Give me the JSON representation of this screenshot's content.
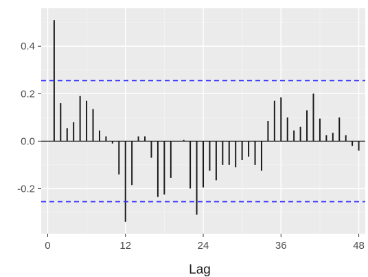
{
  "chart_data": {
    "type": "bar",
    "title": "",
    "xlabel": "Lag",
    "ylabel": "",
    "x_ticks": [
      0,
      12,
      24,
      36,
      48
    ],
    "y_ticks": [
      -0.2,
      0.0,
      0.2,
      0.4
    ],
    "y_tick_labels": [
      "-0.2",
      "0.0",
      "0.2",
      "0.4"
    ],
    "xlim": [
      -1,
      49
    ],
    "ylim": [
      -0.39,
      0.56
    ],
    "confidence_band": [
      0.255,
      -0.255
    ],
    "grid": true,
    "series": [
      {
        "x": [
          1,
          2,
          3,
          4,
          5,
          6,
          7,
          8,
          9,
          10,
          11,
          12,
          13,
          14,
          15,
          16,
          17,
          18,
          19,
          20,
          21,
          22,
          23,
          24,
          25,
          26,
          27,
          28,
          29,
          30,
          31,
          32,
          33,
          34,
          35,
          36,
          37,
          38,
          39,
          40,
          41,
          42,
          43,
          44,
          45,
          46,
          47,
          48
        ],
        "values": [
          0.51,
          0.16,
          0.055,
          0.08,
          0.19,
          0.17,
          0.135,
          0.045,
          0.02,
          -0.01,
          -0.14,
          -0.34,
          -0.185,
          0.02,
          0.02,
          -0.07,
          -0.235,
          -0.225,
          -0.155,
          0.0,
          0.005,
          -0.2,
          -0.31,
          -0.195,
          -0.125,
          -0.165,
          -0.1,
          -0.1,
          -0.11,
          -0.08,
          -0.065,
          -0.1,
          -0.125,
          0.085,
          0.17,
          0.185,
          0.1,
          0.045,
          0.06,
          0.13,
          0.2,
          0.095,
          0.025,
          0.035,
          0.1,
          0.025,
          -0.02,
          -0.04
        ]
      }
    ],
    "colors": {
      "panel": "#ebebeb",
      "grid_major": "#ffffff",
      "grid_minor": "#f4f4f4",
      "bar": "#1a1a1a",
      "confidence": "#3333ff"
    }
  }
}
